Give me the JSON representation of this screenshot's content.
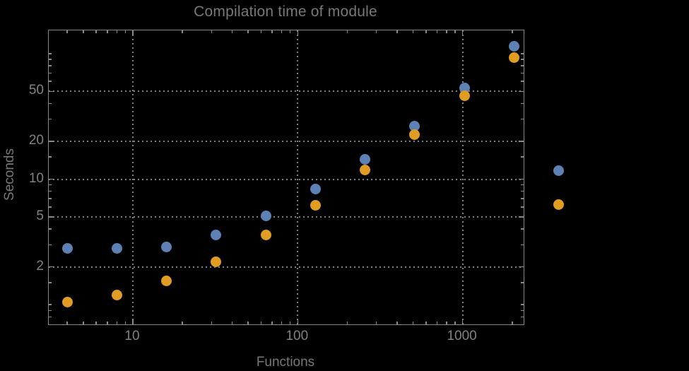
{
  "title": "Compilation time of module",
  "axes": {
    "x": {
      "label": "Functions",
      "scale": "log",
      "major_ticks": [
        10,
        100,
        1000
      ],
      "major_tick_labels": [
        "10",
        "100",
        "1000"
      ],
      "minor_ticks": [
        4,
        5,
        6,
        7,
        8,
        9,
        20,
        30,
        40,
        50,
        60,
        70,
        80,
        90,
        200,
        300,
        400,
        500,
        600,
        700,
        800,
        900,
        2000
      ],
      "range": [
        3.1,
        2340
      ]
    },
    "y": {
      "label": "Seconds",
      "scale": "log",
      "major_ticks": [
        2,
        5,
        10,
        20,
        50
      ],
      "major_tick_labels": [
        "2",
        "5",
        "10",
        "20",
        "50"
      ],
      "minor_ticks": [
        0.8,
        0.9,
        1,
        1.5,
        3,
        4,
        6,
        7,
        8,
        9,
        15,
        30,
        40,
        60,
        70,
        80,
        90,
        100
      ],
      "range": [
        0.7,
        152
      ]
    }
  },
  "chart_data": {
    "type": "scatter",
    "title": "Compilation time of module",
    "xlabel": "Functions",
    "ylabel": "Seconds",
    "x_scale": "log",
    "y_scale": "log",
    "grid": "dotted gray lines at major ticks, framed plot",
    "legend_position": "right of plot, markers only (no visible label text)",
    "x": [
      4,
      8,
      16,
      32,
      64,
      128,
      256,
      512,
      1024,
      2048
    ],
    "series": [
      {
        "name": "series-1-blue",
        "color": "#5E81B5",
        "values": [
          2.8,
          2.8,
          2.9,
          3.6,
          5.1,
          8.3,
          14.3,
          26.5,
          53,
          115
        ]
      },
      {
        "name": "series-2-orange",
        "color": "#E19C24",
        "values": [
          1.05,
          1.2,
          1.55,
          2.2,
          3.6,
          6.2,
          11.9,
          22.5,
          46,
          93
        ]
      }
    ]
  },
  "legend": {
    "markers": [
      {
        "name": "series-1-marker",
        "color": "#5E81B5"
      },
      {
        "name": "series-2-marker",
        "color": "#E19C24"
      }
    ]
  },
  "colors": {
    "background": "#000000",
    "frame": "#878787",
    "grid": "#818181",
    "tick_label": "#828282",
    "title_text": "#787878",
    "axis_label_text": "#787878",
    "series1": "#5E81B5",
    "series2": "#E19C24"
  }
}
